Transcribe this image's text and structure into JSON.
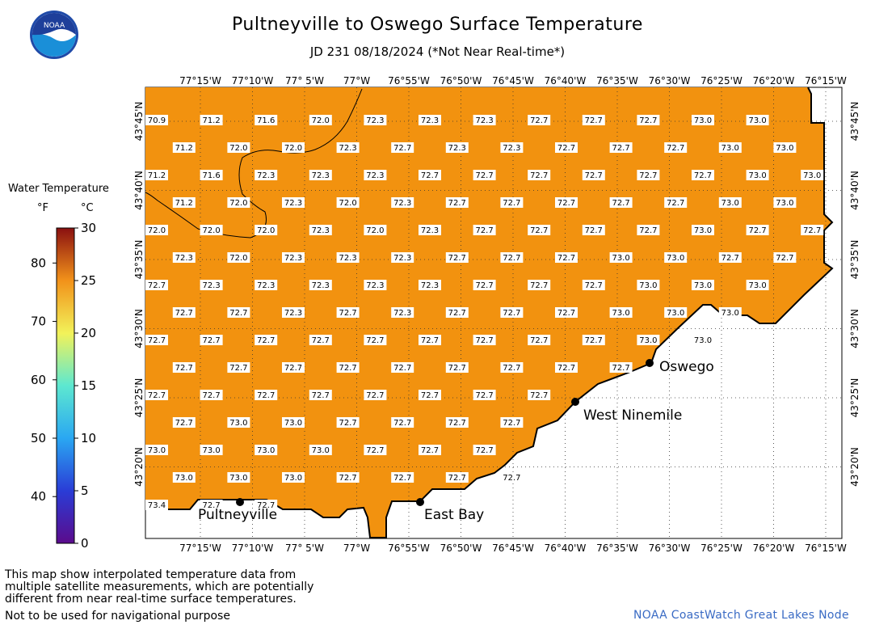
{
  "header": {
    "title": "Pultneyville to Oswego Surface Temperature",
    "subtitle": "JD 231 08/18/2024 (*Not Near Real-time*)",
    "logo_text": "NOAA"
  },
  "legend": {
    "title": "Water Temperature",
    "unit_f": "°F",
    "unit_c": "°C",
    "f_ticks": [
      "40",
      "50",
      "60",
      "70",
      "80"
    ],
    "c_ticks": [
      "0",
      "5",
      "10",
      "15",
      "20",
      "25",
      "30"
    ],
    "colors": {
      "c0": "#5b0b8c",
      "c5": "#2a3cd6",
      "c10": "#2aa7f2",
      "c15": "#5de8d0",
      "c20": "#f2f25a",
      "c25": "#f2921a",
      "c30": "#8a1010"
    }
  },
  "map": {
    "water_color": "#f2920f",
    "land_color": "#ffffff",
    "lon_labels": [
      "77°15'W",
      "77°10'W",
      "77° 5'W",
      "77°W",
      "76°55'W",
      "76°50'W",
      "76°45'W",
      "76°40'W",
      "76°35'W",
      "76°30'W",
      "76°25'W",
      "76°20'W",
      "76°15'W"
    ],
    "lat_labels": [
      "43°45'N",
      "43°40'N",
      "43°35'N",
      "43°30'N",
      "43°25'N",
      "43°20'N"
    ],
    "places": [
      {
        "name": "Oswego"
      },
      {
        "name": "West Ninemile"
      },
      {
        "name": "Pultneyville"
      },
      {
        "name": "East Bay"
      }
    ],
    "rows": [
      [
        "70.9",
        "71.2",
        "71.6",
        "72.0",
        "72.3",
        "72.3",
        "72.3",
        "72.7",
        "72.7",
        "72.7",
        "73.0",
        "73.0"
      ],
      [
        "71.2",
        "72.0",
        "72.0",
        "72.3",
        "72.7",
        "72.3",
        "72.3",
        "72.7",
        "72.7",
        "72.7",
        "73.0",
        "73.0"
      ],
      [
        "71.2",
        "71.6",
        "72.3",
        "72.3",
        "72.3",
        "72.7",
        "72.7",
        "72.7",
        "72.7",
        "72.7",
        "72.7",
        "73.0",
        "73.0"
      ],
      [
        "71.2",
        "72.0",
        "72.3",
        "72.0",
        "72.3",
        "72.7",
        "72.7",
        "72.7",
        "72.7",
        "72.7",
        "73.0",
        "73.0"
      ],
      [
        "72.0",
        "72.0",
        "72.0",
        "72.3",
        "72.0",
        "72.3",
        "72.7",
        "72.7",
        "72.7",
        "72.7",
        "73.0",
        "72.7",
        "72.7"
      ],
      [
        "72.3",
        "72.0",
        "72.3",
        "72.3",
        "72.3",
        "72.7",
        "72.7",
        "72.7",
        "73.0",
        "73.0",
        "72.7",
        "72.7"
      ],
      [
        "72.7",
        "72.3",
        "72.3",
        "72.3",
        "72.3",
        "72.3",
        "72.7",
        "72.7",
        "72.7",
        "73.0",
        "73.0",
        "73.0"
      ],
      [
        "72.7",
        "72.7",
        "72.3",
        "72.7",
        "72.3",
        "72.7",
        "72.7",
        "72.7",
        "73.0",
        "73.0",
        "73.0"
      ],
      [
        "72.7",
        "72.7",
        "72.7",
        "72.7",
        "72.7",
        "72.7",
        "72.7",
        "72.7",
        "72.7",
        "73.0",
        "73.0"
      ],
      [
        "72.7",
        "72.7",
        "72.7",
        "72.7",
        "72.7",
        "72.7",
        "72.7",
        "72.7",
        "72.7"
      ],
      [
        "72.7",
        "72.7",
        "72.7",
        "72.7",
        "72.7",
        "72.7",
        "72.7",
        "72.7"
      ],
      [
        "72.7",
        "73.0",
        "73.0",
        "72.7",
        "72.7",
        "72.7",
        "72.7"
      ],
      [
        "73.0",
        "73.0",
        "73.0",
        "73.0",
        "72.7",
        "72.7",
        "72.7"
      ],
      [
        "73.0",
        "73.0",
        "73.0",
        "72.7",
        "72.7",
        "72.7",
        "72.7"
      ],
      [
        "73.4",
        "72.7",
        "72.7"
      ]
    ]
  },
  "footer": {
    "disclaimer_lines": [
      "This map show interpolated temperature data from",
      "multiple satellite measurements, which are potentially",
      "different from near real-time surface temperatures."
    ],
    "nav_note": "Not to be used for navigational purpose",
    "credit": "NOAA CoastWatch Great Lakes Node"
  }
}
